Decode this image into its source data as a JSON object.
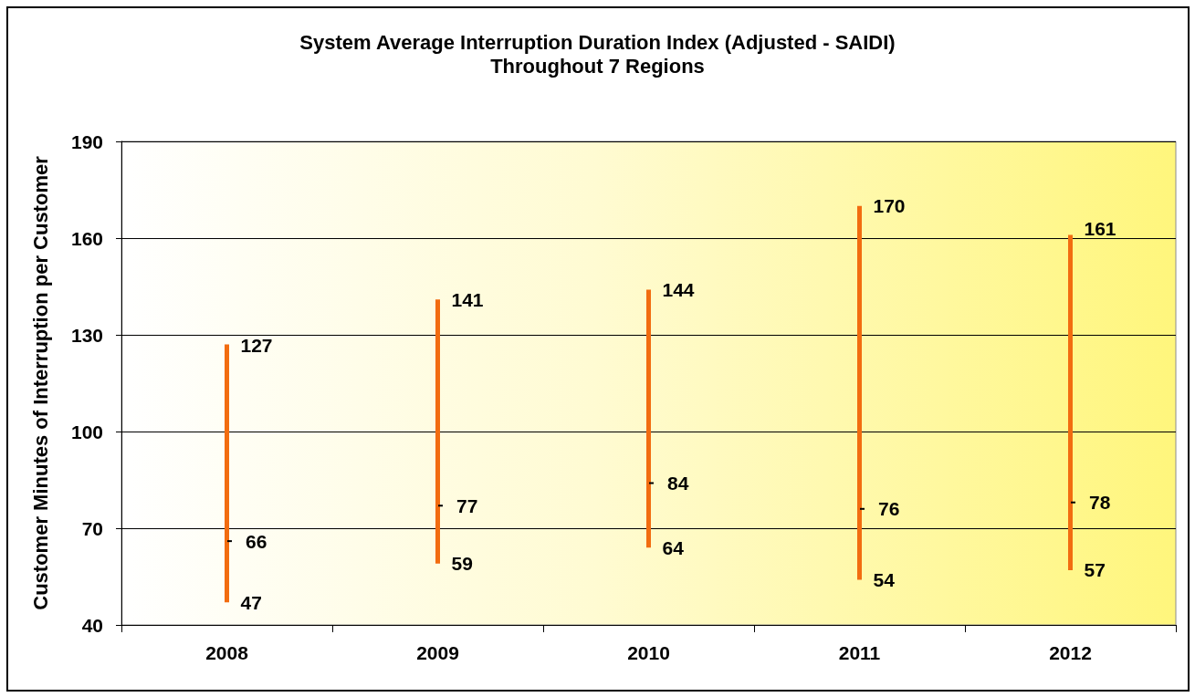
{
  "chart_data": {
    "type": "line",
    "title": "System Average Interruption Duration Index (Adjusted - SAIDI)",
    "subtitle": "Throughout 7 Regions",
    "ylabel": "Customer Minutes of Interruption per Customer",
    "series": [
      {
        "x": [
          2008,
          2008
        ],
        "values": [
          47,
          127
        ],
        "color": "#f26c10",
        "marker": "none"
      },
      {
        "x": [
          2009,
          2009
        ],
        "values": [
          59,
          141
        ],
        "color": "#f26c10",
        "marker": "none"
      },
      {
        "x": [
          2010,
          2010
        ],
        "values": [
          64,
          144
        ],
        "color": "#f26c10",
        "marker": "none"
      },
      {
        "x": [
          2011,
          2011
        ],
        "values": [
          54,
          170
        ],
        "color": "#f26c10",
        "marker": "none"
      },
      {
        "x": [
          2012,
          2012
        ],
        "values": [
          57,
          161
        ],
        "color": "#f26c10",
        "marker": "none"
      },
      {
        "type": "scatter",
        "x": [
          2008,
          2009,
          2010,
          2011,
          2012
        ],
        "values": [
          66,
          77,
          84,
          76,
          78
        ],
        "color": "#000000",
        "marker": "square"
      }
    ],
    "xlim": [
      2007.5,
      2012.5
    ],
    "xticks": [
      {
        "value": 2007.5,
        "label": null
      },
      2008,
      {
        "value": 2008.5,
        "label": null
      },
      2009,
      {
        "value": 2009.5,
        "label": null
      },
      2010,
      {
        "value": 2010.5,
        "label": null
      },
      2011,
      {
        "value": 2011.5,
        "label": null
      },
      2012,
      {
        "value": 2012.5,
        "label": null
      }
    ],
    "ylim": [
      40,
      190
    ],
    "yticks": [
      40,
      70,
      100,
      130,
      160,
      190
    ],
    "grid": "y",
    "data_labels": true
  }
}
